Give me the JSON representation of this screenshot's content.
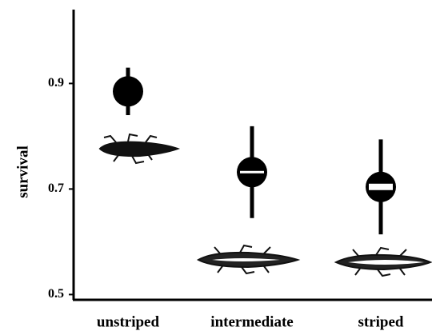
{
  "chart_data": {
    "type": "dot-errorbar",
    "ylabel": "survival",
    "categories": [
      "unstriped",
      "intermediate",
      "striped"
    ],
    "values": [
      0.885,
      0.732,
      0.704
    ],
    "errors": [
      0.045,
      0.087,
      0.09
    ],
    "color": "#000000",
    "ylim": [
      0.49,
      1.04
    ],
    "yticks": [
      0.5,
      0.7,
      0.9
    ],
    "grid": false
  }
}
